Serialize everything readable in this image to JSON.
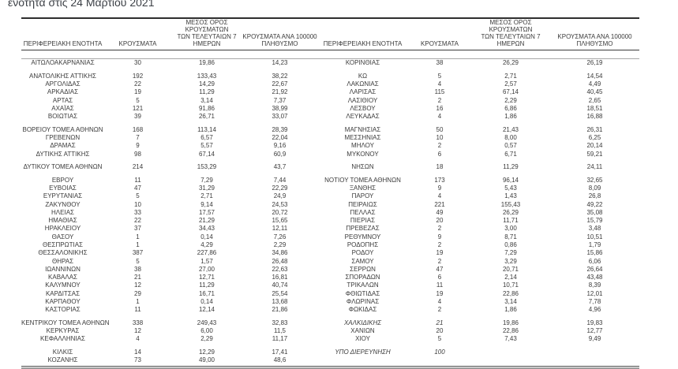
{
  "title": "ενότητα στις 24 Μαρτίου 2021",
  "table": {
    "headers": {
      "region": "ΠΕΡΙΦΕΡΕΙΑΚΗ ΕΝΟΤΗΤΑ",
      "cases": "ΚΡΟΥΣΜΑΤΑ",
      "avg7": "ΜΕΣΟΣ ΟΡΟΣ ΚΡΟΥΣΜΑΤΩΝ\nΤΩΝ ΤΕΛΕΥΤΑΙΩΝ 7\nΗΜΕΡΩΝ",
      "per100k": "ΚΡΟΥΣΜΑΤΑ ΑΝΑ 100000\nΠΛΗΘΥΣΜΟ"
    },
    "colors": {
      "text": "#3b3b3b",
      "rule_dark": "#3a3a3a",
      "rule_gray": "#a8a8a8"
    },
    "rows": [
      {
        "left": [
          "ΑΙΤΩΛΟΑΚΑΡΝΑΝΙΑΣ",
          "30",
          "19,86",
          "14,23"
        ],
        "right": [
          "ΚΟΡΙΝΘΙΑΣ",
          "38",
          "26,29",
          "26,19"
        ]
      },
      {
        "gap": true
      },
      {
        "left": [
          "ΑΝΑΤΟΛΙΚΗΣ ΑΤΤΙΚΗΣ",
          "192",
          "133,43",
          "38,22"
        ],
        "right": [
          "ΚΩ",
          "5",
          "2,71",
          "14,54"
        ]
      },
      {
        "left": [
          "ΑΡΓΟΛΙΔΑΣ",
          "22",
          "14,29",
          "22,67"
        ],
        "right": [
          "ΛΑΚΩΝΙΑΣ",
          "4",
          "2,57",
          "4,49"
        ]
      },
      {
        "left": [
          "ΑΡΚΑΔΙΑΣ",
          "19",
          "11,29",
          "21,92"
        ],
        "right": [
          "ΛΑΡΙΣΑΣ",
          "115",
          "67,14",
          "40,45"
        ]
      },
      {
        "left": [
          "ΑΡΤΑΣ",
          "5",
          "3,14",
          "7,37"
        ],
        "right": [
          "ΛΑΣΙΘΙΟΥ",
          "2",
          "2,29",
          "2,65"
        ]
      },
      {
        "left": [
          "ΑΧΑΪΑΣ",
          "121",
          "91,86",
          "38,99"
        ],
        "right": [
          "ΛΕΣΒΟΥ",
          "16",
          "6,86",
          "18,51"
        ]
      },
      {
        "left": [
          "ΒΟΙΩΤΙΑΣ",
          "39",
          "26,71",
          "33,07"
        ],
        "right": [
          "ΛΕΥΚΑΔΑΣ",
          "4",
          "1,86",
          "16,88"
        ]
      },
      {
        "gap": true
      },
      {
        "left": [
          "ΒΟΡΕΙΟΥ ΤΟΜΕΑ ΑΘΗΝΩΝ",
          "168",
          "113,14",
          "28,39"
        ],
        "right": [
          "ΜΑΓΝΗΣΙΑΣ",
          "50",
          "21,43",
          "26,31"
        ]
      },
      {
        "left": [
          "ΓΡΕΒΕΝΩΝ",
          "7",
          "6,57",
          "22,04"
        ],
        "right": [
          "ΜΕΣΣΗΝΙΑΣ",
          "10",
          "8,00",
          "6,25"
        ]
      },
      {
        "left": [
          "ΔΡΑΜΑΣ",
          "9",
          "5,57",
          "9,16"
        ],
        "right": [
          "ΜΗΛΟΥ",
          "2",
          "0,57",
          "20,14"
        ]
      },
      {
        "left": [
          "ΔΥΤΙΚΗΣ ΑΤΤΙΚΗΣ",
          "98",
          "67,14",
          "60,9"
        ],
        "right": [
          "ΜΥΚΟΝΟΥ",
          "6",
          "6,71",
          "59,21"
        ]
      },
      {
        "gap": true
      },
      {
        "left": [
          "ΔΥΤΙΚΟΥ ΤΟΜΕΑ ΑΘΗΝΩΝ",
          "214",
          "153,29",
          "43,7"
        ],
        "right": [
          "ΝΗΣΩΝ",
          "18",
          "11,29",
          "24,11"
        ]
      },
      {
        "gap": true
      },
      {
        "left": [
          "ΕΒΡΟΥ",
          "11",
          "7,29",
          "7,44"
        ],
        "right": [
          "ΝΟΤΙΟΥ ΤΟΜΕΑ ΑΘΗΝΩΝ",
          "173",
          "96,14",
          "32,65"
        ]
      },
      {
        "left": [
          "ΕΥΒΟΙΑΣ",
          "47",
          "31,29",
          "22,29"
        ],
        "right": [
          "ΞΑΝΘΗΣ",
          "9",
          "5,43",
          "8,09"
        ]
      },
      {
        "left": [
          "ΕΥΡΥΤΑΝΙΑΣ",
          "5",
          "2,71",
          "24,9"
        ],
        "right": [
          "ΠΑΡΟΥ",
          "4",
          "1,43",
          "26,8"
        ]
      },
      {
        "left": [
          "ΖΑΚΥΝΘΟΥ",
          "10",
          "9,14",
          "24,53"
        ],
        "right": [
          "ΠΕΙΡΑΙΩΣ",
          "221",
          "155,43",
          "49,22"
        ]
      },
      {
        "left": [
          "ΗΛΕΙΑΣ",
          "33",
          "17,57",
          "20,72"
        ],
        "right": [
          "ΠΕΛΛΑΣ",
          "49",
          "26,29",
          "35,08"
        ]
      },
      {
        "left": [
          "ΗΜΑΘΙΑΣ",
          "22",
          "21,29",
          "15,65"
        ],
        "right": [
          "ΠΙΕΡΙΑΣ",
          "20",
          "11,71",
          "15,79"
        ]
      },
      {
        "left": [
          "ΗΡΑΚΛΕΙΟΥ",
          "37",
          "34,43",
          "12,11"
        ],
        "right": [
          "ΠΡΕΒΕΖΑΣ",
          "2",
          "3,00",
          "3,48"
        ]
      },
      {
        "left": [
          "ΘΑΣΟΥ",
          "1",
          "0,14",
          "7,26"
        ],
        "right": [
          "ΡΕΘΥΜΝΟΥ",
          "9",
          "8,71",
          "10,51"
        ]
      },
      {
        "left": [
          "ΘΕΣΠΡΩΤΙΑΣ",
          "1",
          "4,29",
          "2,29"
        ],
        "right": [
          "ΡΟΔΟΠΗΣ",
          "2",
          "0,86",
          "1,79"
        ]
      },
      {
        "left": [
          "ΘΕΣΣΑΛΟΝΙΚΗΣ",
          "387",
          "227,86",
          "34,86"
        ],
        "right": [
          "ΡΟΔΟΥ",
          "19",
          "7,29",
          "15,86"
        ]
      },
      {
        "left": [
          "ΘΗΡΑΣ",
          "5",
          "1,57",
          "26,48"
        ],
        "right": [
          "ΣΑΜΟΥ",
          "2",
          "3,29",
          "6,06"
        ]
      },
      {
        "left": [
          "ΙΩΑΝΝΙΝΩΝ",
          "38",
          "27,00",
          "22,63"
        ],
        "right": [
          "ΣΕΡΡΩΝ",
          "47",
          "20,71",
          "26,64"
        ]
      },
      {
        "left": [
          "ΚΑΒΑΛΑΣ",
          "21",
          "12,71",
          "16,81"
        ],
        "right": [
          "ΣΠΟΡΑΔΩΝ",
          "6",
          "2,14",
          "43,48"
        ]
      },
      {
        "left": [
          "ΚΑΛΥΜΝΟΥ",
          "12",
          "11,29",
          "40,74"
        ],
        "right": [
          "ΤΡΙΚΑΛΩΝ",
          "11",
          "10,71",
          "8,39"
        ]
      },
      {
        "left": [
          "ΚΑΡΔΙΤΣΑΣ",
          "29",
          "16,71",
          "25,54"
        ],
        "right": [
          "ΦΘΙΩΤΙΔΑΣ",
          "19",
          "22,86",
          "12,01"
        ]
      },
      {
        "left": [
          "ΚΑΡΠΑΘΟΥ",
          "1",
          "0,14",
          "13,68"
        ],
        "right": [
          "ΦΛΩΡΙΝΑΣ",
          "4",
          "3,14",
          "7,78"
        ]
      },
      {
        "left": [
          "ΚΑΣΤΟΡΙΑΣ",
          "11",
          "12,14",
          "21,86"
        ],
        "right": [
          "ΦΩΚΙΔΑΣ",
          "2",
          "1,86",
          "4,96"
        ]
      },
      {
        "gap": true
      },
      {
        "left": [
          "ΚΕΝΤΡΙΚΟΥ ΤΟΜΕΑ ΑΘΗΝΩΝ",
          "338",
          "249,43",
          "32,83"
        ],
        "right": [
          "ΧΑΛΚΙΔΙΚΗΣ",
          "21",
          "19,86",
          "19,83"
        ],
        "right_italic": true
      },
      {
        "left": [
          "ΚΕΡΚΥΡΑΣ",
          "12",
          "6,00",
          "11,5"
        ],
        "right": [
          "ΧΑΝΙΩΝ",
          "20",
          "22,86",
          "12,77"
        ]
      },
      {
        "left": [
          "ΚΕΦΑΛΛΗΝΙΑΣ",
          "4",
          "2,29",
          "11,17"
        ],
        "right": [
          "ΧΙΟΥ",
          "5",
          "7,43",
          "9,49"
        ]
      },
      {
        "gap": true
      },
      {
        "left": [
          "ΚΙΛΚΙΣ",
          "14",
          "12,29",
          "17,41"
        ],
        "right": [
          "ΥΠΟ ΔΙΕΡΕΥΝΗΣΗ",
          "100",
          "",
          ""
        ],
        "right_italic": true
      },
      {
        "left": [
          "ΚΟΖΑΝΗΣ",
          "73",
          "49,00",
          "48,6"
        ],
        "right": [
          "",
          "",
          "",
          ""
        ]
      }
    ]
  }
}
